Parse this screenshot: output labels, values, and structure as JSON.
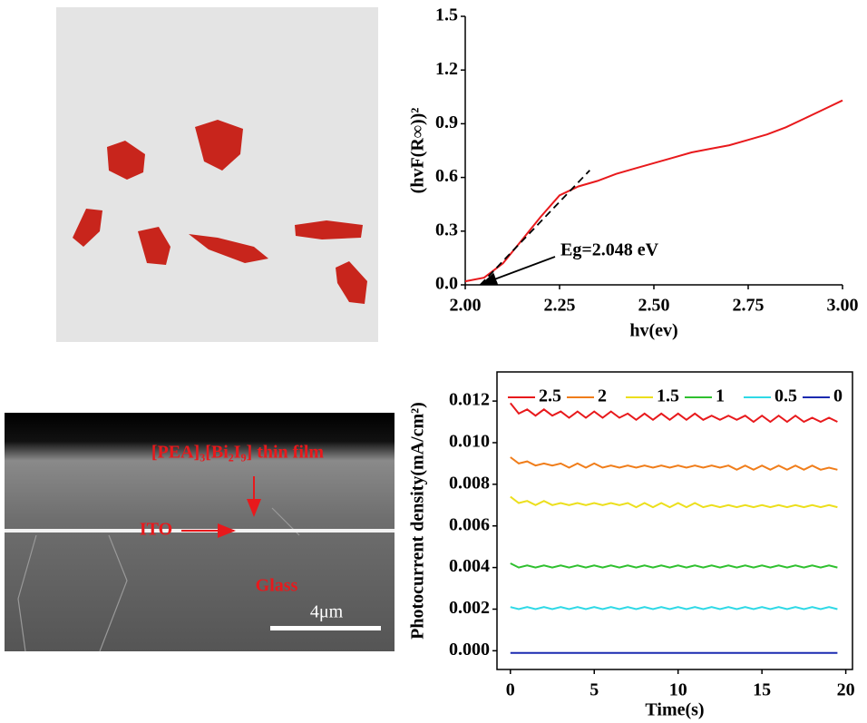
{
  "chart_data": [
    {
      "type": "line",
      "xlabel": "hv(ev)",
      "ylabel": "(hvF(R∞))²",
      "annotation": "Eg=2.048 eV",
      "xlim": [
        2,
        3
      ],
      "ylim": [
        0,
        1.5
      ],
      "xticks": [
        {
          "value": 2,
          "label": "2.00"
        },
        {
          "value": 2.25,
          "label": "2.25"
        },
        {
          "value": 2.5,
          "label": "2.50"
        },
        {
          "value": 2.75,
          "label": "2.75"
        },
        {
          "value": 3,
          "label": "3.00"
        }
      ],
      "yticks": [
        {
          "value": 0,
          "label": "0.0"
        },
        {
          "value": 0.3,
          "label": "0.3"
        },
        {
          "value": 0.6,
          "label": "0.6"
        },
        {
          "value": 0.9,
          "label": "0.9"
        },
        {
          "value": 1.2,
          "label": "1.2"
        },
        {
          "value": 1.5,
          "label": "1.5"
        }
      ],
      "x": [
        2.0,
        2.05,
        2.1,
        2.15,
        2.2,
        2.25,
        2.3,
        2.35,
        2.4,
        2.45,
        2.5,
        2.55,
        2.6,
        2.65,
        2.7,
        2.75,
        2.8,
        2.85,
        2.9,
        2.95,
        3.0
      ],
      "series": [
        {
          "color": "#e8191c",
          "values": [
            0.02,
            0.04,
            0.12,
            0.25,
            0.38,
            0.5,
            0.55,
            0.58,
            0.62,
            0.65,
            0.68,
            0.71,
            0.74,
            0.76,
            0.78,
            0.81,
            0.84,
            0.88,
            0.93,
            0.98,
            1.03
          ]
        }
      ],
      "tangent": {
        "x": [
          2.04,
          2.33
        ],
        "values": [
          0,
          0.64
        ]
      }
    },
    {
      "type": "line",
      "xlabel": "Time(s)",
      "ylabel": "Photocurrent density(mA/cm²)",
      "xlim": [
        -0.8,
        20.4
      ],
      "ylim": [
        -0.0009,
        0.0134
      ],
      "xticks": [
        0,
        5,
        10,
        15,
        20
      ],
      "yticks": [
        {
          "value": 0,
          "label": "0.000"
        },
        {
          "value": 0.002,
          "label": "0.002"
        },
        {
          "value": 0.004,
          "label": "0.004"
        },
        {
          "value": 0.006,
          "label": "0.006"
        },
        {
          "value": 0.008,
          "label": "0.008"
        },
        {
          "value": 0.01,
          "label": "0.010"
        },
        {
          "value": 0.012,
          "label": "0.012"
        }
      ],
      "x": [
        0,
        0.5,
        1,
        1.5,
        2,
        2.5,
        3,
        3.5,
        4,
        4.5,
        5,
        5.5,
        6,
        6.5,
        7,
        7.5,
        8,
        8.5,
        9,
        9.5,
        10,
        10.5,
        11,
        11.5,
        12,
        12.5,
        13,
        13.5,
        14,
        14.5,
        15,
        15.5,
        16,
        16.5,
        17,
        17.5,
        18,
        18.5,
        19,
        19.5
      ],
      "series": [
        {
          "name": "2.5",
          "color": "#e8191c",
          "values": [
            0.0119,
            0.0114,
            0.0116,
            0.0113,
            0.0116,
            0.0113,
            0.0115,
            0.0112,
            0.0115,
            0.0112,
            0.0115,
            0.0112,
            0.0115,
            0.0112,
            0.0114,
            0.0111,
            0.0114,
            0.0111,
            0.0114,
            0.0111,
            0.0114,
            0.0111,
            0.0114,
            0.0111,
            0.0113,
            0.0111,
            0.0113,
            0.0111,
            0.0113,
            0.011,
            0.0113,
            0.011,
            0.0113,
            0.011,
            0.0113,
            0.011,
            0.0112,
            0.011,
            0.0112,
            0.011
          ]
        },
        {
          "name": "2",
          "color": "#f07d1a",
          "values": [
            0.0093,
            0.009,
            0.0091,
            0.0089,
            0.009,
            0.0089,
            0.009,
            0.0088,
            0.009,
            0.0088,
            0.009,
            0.0088,
            0.0089,
            0.0088,
            0.0089,
            0.0088,
            0.0089,
            0.0088,
            0.0089,
            0.0088,
            0.0089,
            0.0088,
            0.0089,
            0.0088,
            0.0089,
            0.0088,
            0.0089,
            0.0087,
            0.0089,
            0.0087,
            0.0089,
            0.0087,
            0.0089,
            0.0087,
            0.0089,
            0.0087,
            0.0089,
            0.0087,
            0.0088,
            0.0087
          ]
        },
        {
          "name": "1.5",
          "color": "#ecdf1c",
          "values": [
            0.0074,
            0.0071,
            0.0072,
            0.007,
            0.0072,
            0.007,
            0.0071,
            0.007,
            0.0071,
            0.007,
            0.0071,
            0.007,
            0.0071,
            0.007,
            0.0071,
            0.0069,
            0.0071,
            0.0069,
            0.0071,
            0.0069,
            0.0071,
            0.0069,
            0.0071,
            0.0069,
            0.007,
            0.0069,
            0.007,
            0.0069,
            0.007,
            0.0069,
            0.007,
            0.0069,
            0.007,
            0.0069,
            0.007,
            0.0069,
            0.007,
            0.0069,
            0.007,
            0.0069
          ]
        },
        {
          "name": "1",
          "color": "#2fc02f",
          "values": [
            0.0042,
            0.004,
            0.0041,
            0.004,
            0.0041,
            0.004,
            0.0041,
            0.004,
            0.0041,
            0.004,
            0.0041,
            0.004,
            0.0041,
            0.004,
            0.0041,
            0.004,
            0.0041,
            0.004,
            0.0041,
            0.004,
            0.0041,
            0.004,
            0.0041,
            0.004,
            0.0041,
            0.004,
            0.0041,
            0.004,
            0.0041,
            0.004,
            0.0041,
            0.004,
            0.0041,
            0.004,
            0.0041,
            0.004,
            0.0041,
            0.004,
            0.0041,
            0.004
          ]
        },
        {
          "name": "0.5",
          "color": "#2fd9e6",
          "values": [
            0.0021,
            0.002,
            0.0021,
            0.002,
            0.0021,
            0.002,
            0.0021,
            0.002,
            0.0021,
            0.002,
            0.0021,
            0.002,
            0.0021,
            0.002,
            0.0021,
            0.002,
            0.0021,
            0.002,
            0.0021,
            0.002,
            0.0021,
            0.002,
            0.0021,
            0.002,
            0.0021,
            0.002,
            0.0021,
            0.002,
            0.0021,
            0.002,
            0.0021,
            0.002,
            0.0021,
            0.002,
            0.0021,
            0.002,
            0.0021,
            0.002,
            0.0021,
            0.002
          ]
        },
        {
          "name": "0",
          "color": "#1b2ab0",
          "values": [
            -0.0001,
            -0.0001,
            -0.0001,
            -0.0001,
            -0.0001,
            -0.0001,
            -0.0001,
            -0.0001,
            -0.0001,
            -0.0001,
            -0.0001,
            -0.0001,
            -0.0001,
            -0.0001,
            -0.0001,
            -0.0001,
            -0.0001,
            -0.0001,
            -0.0001,
            -0.0001,
            -0.0001,
            -0.0001,
            -0.0001,
            -0.0001,
            -0.0001,
            -0.0001,
            -0.0001,
            -0.0001,
            -0.0001,
            -0.0001,
            -0.0001,
            -0.0001,
            -0.0001,
            -0.0001,
            -0.0001,
            -0.0001,
            -0.0001,
            -0.0001,
            -0.0001,
            -0.0001
          ]
        }
      ]
    }
  ],
  "sem_image": {
    "film_label": "[PEA]₃[Bi₂I₉] thin film",
    "ito_label": "ITO",
    "glass_label": "Glass",
    "scale_label": "4μm"
  }
}
